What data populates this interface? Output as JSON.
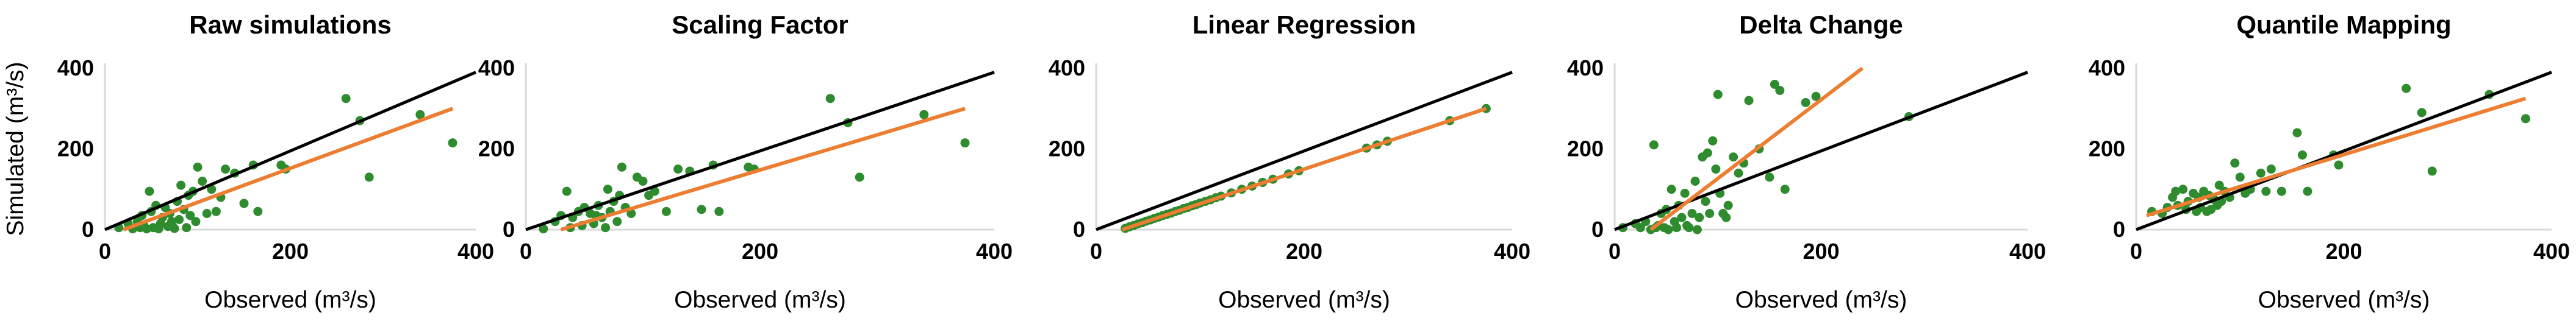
{
  "colors": {
    "points": "#2e8b2e",
    "regression_line": "#ed7d31",
    "identity_line": "#000000",
    "axis": "#d9d9d9",
    "muted_label": "#888888"
  },
  "chart_data": [
    {
      "type": "scatter",
      "title": "Raw simulations",
      "xlabel": "Observed (m³/s)",
      "ylabel": "Simulated (m³/s)",
      "xlim": [
        0,
        400
      ],
      "ylim": [
        0,
        400
      ],
      "xticks": [
        "0",
        "200",
        "400"
      ],
      "yticks": [
        "0",
        "200",
        "400"
      ],
      "identity_line": [
        [
          0,
          0
        ],
        [
          400,
          390
        ]
      ],
      "trend_line": [
        [
          20,
          0
        ],
        [
          375,
          300
        ]
      ],
      "points": [
        [
          15,
          5
        ],
        [
          25,
          15
        ],
        [
          30,
          2
        ],
        [
          35,
          20
        ],
        [
          38,
          5
        ],
        [
          40,
          35
        ],
        [
          42,
          10
        ],
        [
          45,
          2
        ],
        [
          48,
          95
        ],
        [
          50,
          45
        ],
        [
          52,
          5
        ],
        [
          55,
          60
        ],
        [
          58,
          2
        ],
        [
          60,
          15
        ],
        [
          62,
          30
        ],
        [
          65,
          55
        ],
        [
          68,
          8
        ],
        [
          70,
          40
        ],
        [
          72,
          20
        ],
        [
          75,
          3
        ],
        [
          78,
          70
        ],
        [
          80,
          25
        ],
        [
          82,
          110
        ],
        [
          85,
          50
        ],
        [
          88,
          5
        ],
        [
          90,
          85
        ],
        [
          92,
          35
        ],
        [
          95,
          95
        ],
        [
          98,
          20
        ],
        [
          100,
          155
        ],
        [
          105,
          120
        ],
        [
          110,
          40
        ],
        [
          115,
          100
        ],
        [
          120,
          45
        ],
        [
          125,
          80
        ],
        [
          130,
          150
        ],
        [
          140,
          140
        ],
        [
          150,
          65
        ],
        [
          160,
          160
        ],
        [
          165,
          45
        ],
        [
          190,
          160
        ],
        [
          195,
          150
        ],
        [
          260,
          325
        ],
        [
          275,
          270
        ],
        [
          285,
          130
        ],
        [
          340,
          285
        ],
        [
          375,
          215
        ]
      ]
    },
    {
      "type": "scatter",
      "title": "Scaling Factor",
      "xlabel": "Observed (m³/s)",
      "ylabel": "",
      "xlim": [
        0,
        400
      ],
      "ylim": [
        0,
        400
      ],
      "xticks": [
        "0",
        "200",
        "400"
      ],
      "yticks": [
        "0",
        "200",
        "400"
      ],
      "identity_line": [
        [
          0,
          0
        ],
        [
          400,
          390
        ]
      ],
      "trend_line": [
        [
          30,
          0
        ],
        [
          375,
          300
        ]
      ],
      "points": [
        [
          15,
          2
        ],
        [
          25,
          20
        ],
        [
          30,
          35
        ],
        [
          35,
          95
        ],
        [
          38,
          5
        ],
        [
          40,
          30
        ],
        [
          45,
          45
        ],
        [
          48,
          10
        ],
        [
          50,
          55
        ],
        [
          55,
          40
        ],
        [
          58,
          15
        ],
        [
          60,
          35
        ],
        [
          62,
          60
        ],
        [
          65,
          30
        ],
        [
          68,
          5
        ],
        [
          70,
          100
        ],
        [
          72,
          45
        ],
        [
          75,
          70
        ],
        [
          78,
          20
        ],
        [
          80,
          85
        ],
        [
          82,
          155
        ],
        [
          85,
          55
        ],
        [
          90,
          40
        ],
        [
          95,
          130
        ],
        [
          100,
          120
        ],
        [
          105,
          85
        ],
        [
          110,
          95
        ],
        [
          120,
          45
        ],
        [
          130,
          150
        ],
        [
          140,
          145
        ],
        [
          150,
          50
        ],
        [
          160,
          160
        ],
        [
          165,
          45
        ],
        [
          190,
          155
        ],
        [
          195,
          150
        ],
        [
          260,
          325
        ],
        [
          275,
          265
        ],
        [
          285,
          130
        ],
        [
          340,
          285
        ],
        [
          375,
          215
        ]
      ]
    },
    {
      "type": "scatter",
      "title": "Linear Regression",
      "xlabel": "Observed (m³/s)",
      "ylabel": "",
      "xlim": [
        0,
        400
      ],
      "ylim": [
        0,
        400
      ],
      "xticks": [
        "0",
        "200",
        "400"
      ],
      "yticks": [
        "0",
        "200",
        "400"
      ],
      "identity_line": [
        [
          0,
          0
        ],
        [
          400,
          390
        ]
      ],
      "trend_line": [
        [
          25,
          0
        ],
        [
          375,
          300
        ]
      ],
      "points": [
        [
          28,
          3
        ],
        [
          32,
          7
        ],
        [
          36,
          10
        ],
        [
          40,
          14
        ],
        [
          44,
          17
        ],
        [
          48,
          21
        ],
        [
          52,
          24
        ],
        [
          56,
          28
        ],
        [
          60,
          31
        ],
        [
          64,
          35
        ],
        [
          68,
          38
        ],
        [
          72,
          41
        ],
        [
          76,
          45
        ],
        [
          80,
          48
        ],
        [
          84,
          52
        ],
        [
          88,
          55
        ],
        [
          92,
          59
        ],
        [
          96,
          62
        ],
        [
          100,
          66
        ],
        [
          105,
          70
        ],
        [
          110,
          74
        ],
        [
          115,
          79
        ],
        [
          120,
          83
        ],
        [
          130,
          91
        ],
        [
          140,
          100
        ],
        [
          150,
          108
        ],
        [
          160,
          117
        ],
        [
          170,
          125
        ],
        [
          185,
          138
        ],
        [
          195,
          146
        ],
        [
          260,
          202
        ],
        [
          270,
          210
        ],
        [
          280,
          219
        ],
        [
          340,
          270
        ],
        [
          375,
          300
        ]
      ]
    },
    {
      "type": "scatter",
      "title": "Delta Change",
      "xlabel": "Observed (m³/s)",
      "ylabel": "",
      "xlim": [
        0,
        400
      ],
      "ylim": [
        0,
        400
      ],
      "xticks": [
        "0",
        "200",
        "400"
      ],
      "yticks": [
        "0",
        "200",
        "400"
      ],
      "identity_line": [
        [
          0,
          0
        ],
        [
          400,
          390
        ]
      ],
      "trend_line": [
        [
          35,
          0
        ],
        [
          240,
          400
        ]
      ],
      "points": [
        [
          8,
          5
        ],
        [
          20,
          15
        ],
        [
          25,
          5
        ],
        [
          30,
          20
        ],
        [
          35,
          0
        ],
        [
          38,
          210
        ],
        [
          40,
          5
        ],
        [
          42,
          10
        ],
        [
          45,
          40
        ],
        [
          48,
          5
        ],
        [
          50,
          50
        ],
        [
          52,
          0
        ],
        [
          55,
          100
        ],
        [
          58,
          20
        ],
        [
          60,
          5
        ],
        [
          62,
          60
        ],
        [
          65,
          30
        ],
        [
          68,
          90
        ],
        [
          70,
          10
        ],
        [
          72,
          5
        ],
        [
          75,
          40
        ],
        [
          78,
          120
        ],
        [
          80,
          0
        ],
        [
          82,
          30
        ],
        [
          85,
          180
        ],
        [
          88,
          70
        ],
        [
          90,
          190
        ],
        [
          92,
          40
        ],
        [
          95,
          220
        ],
        [
          98,
          150
        ],
        [
          100,
          335
        ],
        [
          102,
          90
        ],
        [
          105,
          40
        ],
        [
          108,
          30
        ],
        [
          110,
          60
        ],
        [
          115,
          180
        ],
        [
          120,
          140
        ],
        [
          125,
          165
        ],
        [
          130,
          320
        ],
        [
          140,
          200
        ],
        [
          150,
          130
        ],
        [
          155,
          360
        ],
        [
          160,
          345
        ],
        [
          165,
          100
        ],
        [
          185,
          315
        ],
        [
          195,
          330
        ],
        [
          285,
          280
        ]
      ]
    },
    {
      "type": "scatter",
      "title": "Quantile Mapping",
      "xlabel": "Observed (m³/s)",
      "ylabel": "",
      "xlim": [
        0,
        400
      ],
      "ylim": [
        0,
        400
      ],
      "xticks": [
        "0",
        "200",
        "400"
      ],
      "yticks": [
        "0",
        "200",
        "400"
      ],
      "identity_line": [
        [
          0,
          0
        ],
        [
          400,
          390
        ]
      ],
      "trend_line": [
        [
          10,
          35
        ],
        [
          375,
          325
        ]
      ],
      "points": [
        [
          15,
          45
        ],
        [
          25,
          40
        ],
        [
          30,
          55
        ],
        [
          35,
          80
        ],
        [
          38,
          95
        ],
        [
          40,
          60
        ],
        [
          45,
          100
        ],
        [
          48,
          50
        ],
        [
          50,
          70
        ],
        [
          55,
          90
        ],
        [
          58,
          45
        ],
        [
          60,
          80
        ],
        [
          62,
          55
        ],
        [
          65,
          95
        ],
        [
          68,
          45
        ],
        [
          70,
          85
        ],
        [
          72,
          50
        ],
        [
          75,
          75
        ],
        [
          78,
          60
        ],
        [
          80,
          110
        ],
        [
          82,
          70
        ],
        [
          85,
          95
        ],
        [
          90,
          80
        ],
        [
          95,
          165
        ],
        [
          100,
          130
        ],
        [
          105,
          90
        ],
        [
          110,
          100
        ],
        [
          120,
          140
        ],
        [
          125,
          95
        ],
        [
          130,
          150
        ],
        [
          140,
          95
        ],
        [
          155,
          240
        ],
        [
          160,
          185
        ],
        [
          165,
          95
        ],
        [
          190,
          185
        ],
        [
          195,
          160
        ],
        [
          260,
          350
        ],
        [
          275,
          290
        ],
        [
          285,
          145
        ],
        [
          340,
          335
        ],
        [
          375,
          275
        ]
      ]
    }
  ]
}
